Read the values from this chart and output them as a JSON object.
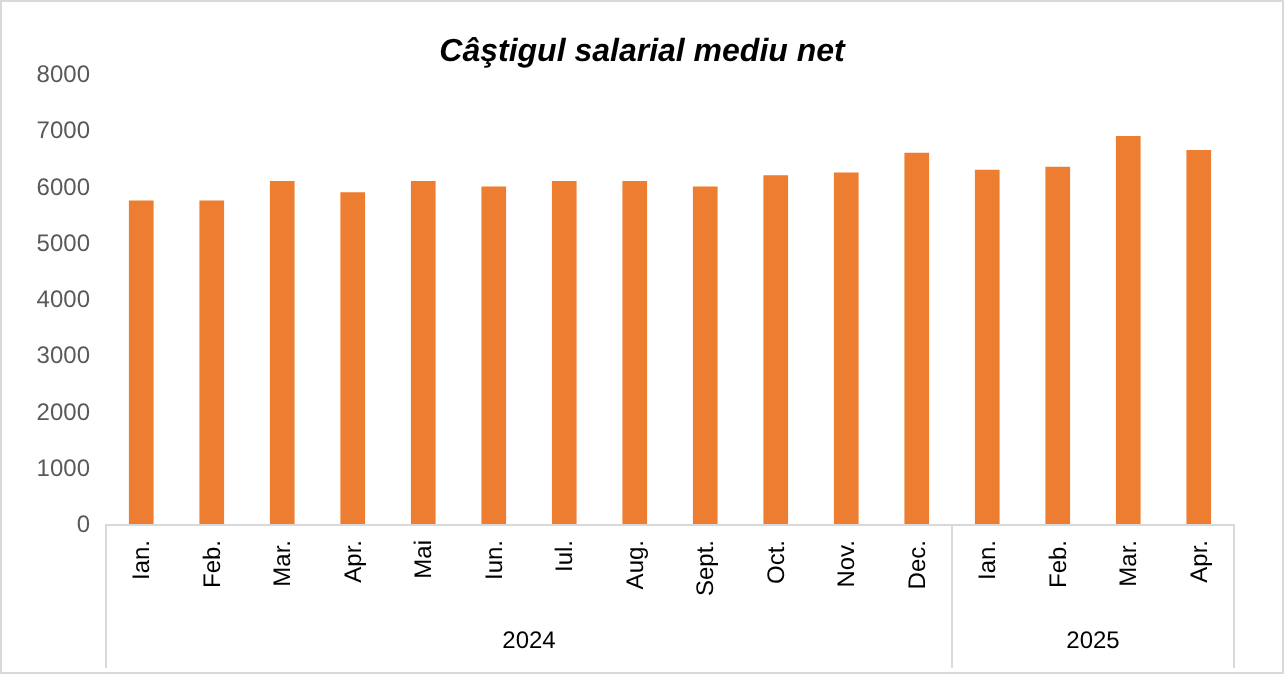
{
  "chart_data": {
    "type": "bar",
    "title": "Câştigul salarial mediu net",
    "categories": [
      "Ian.",
      "Feb.",
      "Mar.",
      "Apr.",
      "Mai",
      "Iun.",
      "Iul.",
      "Aug.",
      "Sept.",
      "Oct.",
      "Nov.",
      "Dec.",
      "Ian.",
      "Feb.",
      "Mar.",
      "Apr."
    ],
    "values": [
      5750,
      5750,
      6100,
      5900,
      6100,
      6000,
      6100,
      6100,
      6000,
      6200,
      6250,
      6600,
      6300,
      6350,
      6900,
      6650
    ],
    "color": "#ed7d31",
    "ylim": [
      0,
      8000
    ],
    "yticks": [
      0,
      1000,
      2000,
      3000,
      4000,
      5000,
      6000,
      7000,
      8000
    ],
    "grid": false,
    "annotations": [
      "2024",
      "2025"
    ]
  }
}
